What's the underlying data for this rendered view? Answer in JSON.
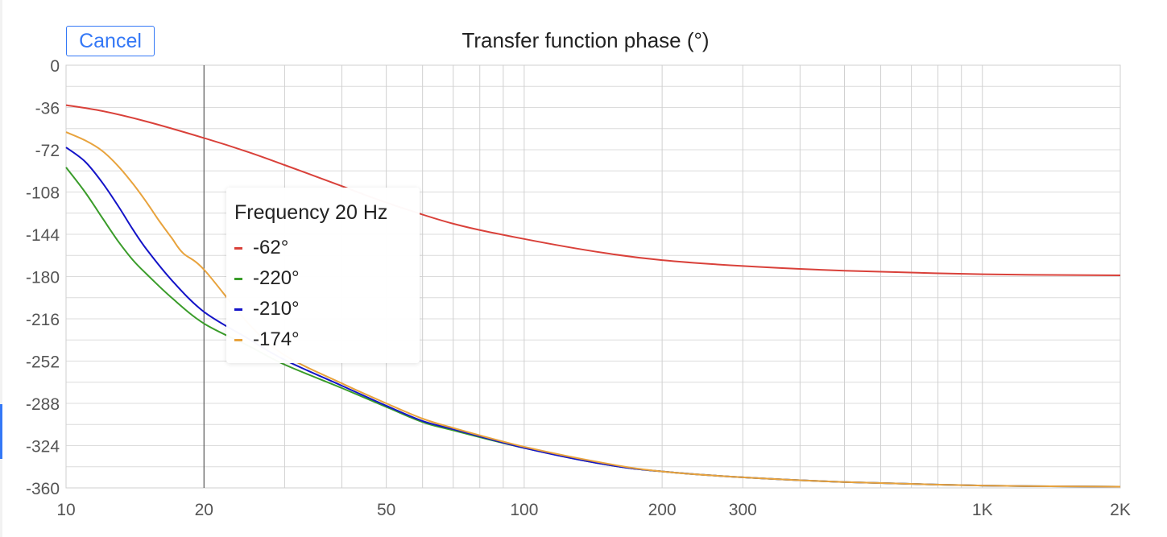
{
  "cancel_label": "Cancel",
  "tooltip": {
    "title": "Frequency 20 Hz",
    "rows": [
      {
        "value": "-62°",
        "color": "#d9413a"
      },
      {
        "value": "-220°",
        "color": "#3a9c2a"
      },
      {
        "value": "-210°",
        "color": "#1414c8"
      },
      {
        "value": "-174°",
        "color": "#e8a33d"
      }
    ]
  },
  "chart_data": {
    "type": "line",
    "title": "Transfer function phase (°)",
    "xlabel": "",
    "ylabel": "",
    "x_scale": "log",
    "xlim": [
      10,
      2000
    ],
    "ylim": [
      -360,
      0
    ],
    "x_tick_values": [
      10,
      20,
      50,
      100,
      200,
      300,
      1000,
      2000
    ],
    "x_tick_labels": [
      "10",
      "20",
      "50",
      "100",
      "200",
      "300",
      "1K",
      "2K"
    ],
    "y_ticks": [
      0,
      -36,
      -72,
      -108,
      -144,
      -180,
      -216,
      -252,
      -288,
      -324,
      -360
    ],
    "grid": true,
    "cursor_x": 20,
    "series": [
      {
        "color": "#d9413a",
        "x": [
          10,
          12,
          15,
          20,
          25,
          30,
          40,
          50,
          70,
          100,
          150,
          200,
          300,
          500,
          1000,
          2000
        ],
        "y": [
          -34,
          -39,
          -48,
          -62,
          -74,
          -85,
          -103,
          -117,
          -135,
          -148,
          -160,
          -166,
          -171,
          -175,
          -178,
          -179
        ]
      },
      {
        "color": "#3a9c2a",
        "x": [
          10,
          11,
          12,
          13,
          14,
          15,
          17,
          20,
          25,
          30,
          40,
          50,
          60,
          70,
          100,
          150,
          200,
          300,
          500,
          1000,
          2000
        ],
        "y": [
          -87,
          -108,
          -130,
          -150,
          -166,
          -178,
          -198,
          -220,
          -239,
          -255,
          -275,
          -291,
          -304,
          -311,
          -326,
          -340,
          -346,
          -351,
          -355,
          -358,
          -359
        ]
      },
      {
        "color": "#1414c8",
        "x": [
          10,
          11,
          12,
          13,
          14,
          15,
          17,
          20,
          25,
          30,
          40,
          50,
          60,
          70,
          100,
          150,
          200,
          300,
          500,
          1000,
          2000
        ],
        "y": [
          -70,
          -82,
          -100,
          -120,
          -140,
          -157,
          -183,
          -210,
          -233,
          -251,
          -273,
          -290,
          -303,
          -310,
          -326,
          -340,
          -346,
          -351,
          -355,
          -358,
          -359
        ]
      },
      {
        "color": "#e8a33d",
        "x": [
          10,
          11,
          12,
          13,
          14,
          15,
          16,
          17,
          18,
          20,
          25,
          30,
          40,
          50,
          60,
          70,
          100,
          150,
          200,
          300,
          500,
          1000,
          2000
        ],
        "y": [
          -57,
          -64,
          -73,
          -86,
          -101,
          -117,
          -133,
          -147,
          -160,
          -174,
          -220,
          -247,
          -271,
          -288,
          -301,
          -309,
          -325,
          -339,
          -346,
          -351,
          -355,
          -358,
          -359
        ]
      }
    ]
  }
}
